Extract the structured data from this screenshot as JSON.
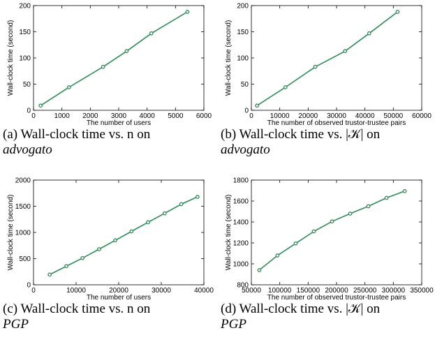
{
  "chart_data": [
    {
      "type": "line",
      "xlabel": "The number of users",
      "ylabel": "Wall-clock time (second)",
      "xlim": [
        0,
        6000
      ],
      "ylim": [
        0,
        200
      ],
      "xticks": [
        0,
        1000,
        2000,
        3000,
        4000,
        5000,
        6000
      ],
      "yticks": [
        0,
        50,
        100,
        150,
        200
      ],
      "color": "#2e8b57",
      "x": [
        250,
        1250,
        2450,
        3280,
        4150,
        5420
      ],
      "y": [
        9,
        44,
        83,
        113,
        147,
        188
      ],
      "caption": "(a) Wall-clock time vs.  n on",
      "caption_sub": "advogato"
    },
    {
      "type": "line",
      "xlabel": "The number of observed trustor-trustee pairs",
      "ylabel": "Wall-clock time (second)",
      "xlim": [
        0,
        60000
      ],
      "ylim": [
        0,
        200
      ],
      "xticks": [
        0,
        10000,
        20000,
        30000,
        40000,
        50000,
        60000
      ],
      "yticks": [
        0,
        50,
        100,
        150,
        200
      ],
      "color": "#2e8b57",
      "x": [
        2000,
        12000,
        22500,
        33000,
        41500,
        51500
      ],
      "y": [
        9,
        44,
        83,
        113,
        147,
        188
      ],
      "caption": "(b) Wall-clock time vs. |𝒦| on",
      "caption_sub": "advogato"
    },
    {
      "type": "line",
      "xlabel": "The number of users",
      "ylabel": "Wall-clock time (second)",
      "xlim": [
        0,
        40000
      ],
      "ylim": [
        0,
        2000
      ],
      "xticks": [
        0,
        10000,
        20000,
        30000,
        40000
      ],
      "yticks": [
        0,
        500,
        1000,
        1500,
        2000
      ],
      "color": "#2e8b57",
      "x": [
        3800,
        7700,
        11500,
        15400,
        19200,
        23000,
        26900,
        30800,
        34700,
        38500
      ],
      "y": [
        195,
        355,
        510,
        680,
        850,
        1020,
        1195,
        1365,
        1540,
        1680
      ],
      "caption": "(c) Wall-clock time vs.  n on",
      "caption_sub": "PGP"
    },
    {
      "type": "line",
      "xlabel": "The number of observed trustor-trustee pairs",
      "ylabel": "Wall-clock time (second)",
      "xlim": [
        50000,
        350000
      ],
      "ylim": [
        800,
        1800
      ],
      "xticks": [
        50000,
        100000,
        150000,
        200000,
        250000,
        300000,
        350000
      ],
      "yticks": [
        800,
        1000,
        1200,
        1400,
        1600,
        1800
      ],
      "color": "#2e8b57",
      "x": [
        64000,
        96000,
        128000,
        160000,
        192000,
        224000,
        256000,
        288000,
        320000
      ],
      "y": [
        940,
        1080,
        1195,
        1310,
        1405,
        1480,
        1550,
        1630,
        1695
      ],
      "caption": "(d) Wall-clock time vs. |𝒦| on",
      "caption_sub": "PGP"
    }
  ]
}
